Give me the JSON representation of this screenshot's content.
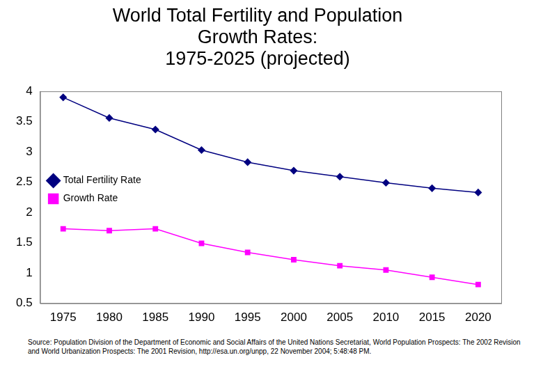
{
  "chart_data": {
    "type": "line",
    "title": [
      "World Total Fertility and Population",
      "Growth Rates:",
      "1975-2025 (projected)"
    ],
    "source": "Source: Population Division of the Department of Economic and Social Affairs of the United Nations Secretariat, World Population Prospects: The 2002 Revision and World Urbanization Prospects: The 2001 Revision, http://esa.un.org/unpp, 22 November 2004; 5:48:48 PM.",
    "categories": [
      "1975",
      "1980",
      "1985",
      "1990",
      "1995",
      "2000",
      "2005",
      "2010",
      "2015",
      "2020"
    ],
    "series": [
      {
        "name": "Total Fertility Rate",
        "color": "#000080",
        "marker": "diamond",
        "values": [
          3.9,
          3.56,
          3.37,
          3.03,
          2.83,
          2.69,
          2.59,
          2.49,
          2.4,
          2.33
        ]
      },
      {
        "name": "Growth Rate",
        "color": "#ff00ff",
        "marker": "square",
        "values": [
          1.73,
          1.7,
          1.73,
          1.49,
          1.34,
          1.22,
          1.12,
          1.05,
          0.93,
          0.81
        ]
      }
    ],
    "ylim": [
      0.5,
      4
    ],
    "yticks": [
      0.5,
      1,
      1.5,
      2,
      2.5,
      3,
      3.5,
      4
    ],
    "grid": false,
    "legend": "upper right"
  }
}
